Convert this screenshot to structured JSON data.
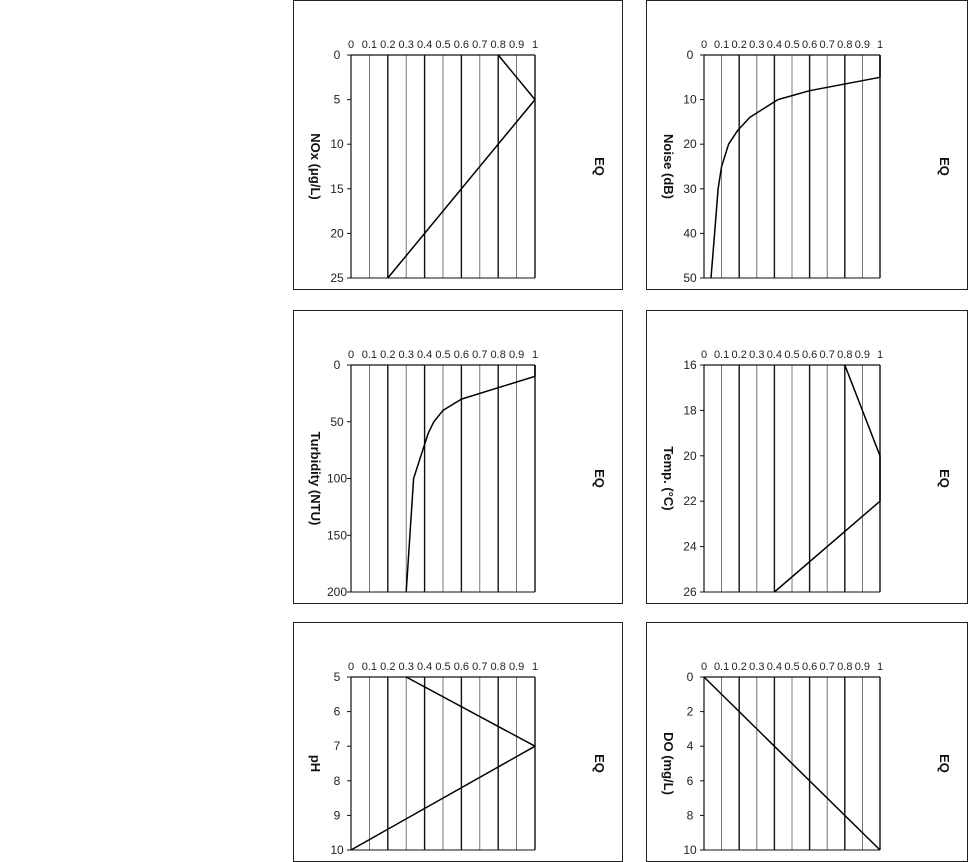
{
  "page": {
    "rotated": true,
    "rotation_degrees": 90
  },
  "chart_data": [
    {
      "panel_label": "noise",
      "type": "line",
      "ylabel": "EQ",
      "xlabel": "Noise (dB)",
      "ylim": [
        0,
        1
      ],
      "xlim": [
        0,
        50
      ],
      "y_ticks": [
        "0",
        "0.1",
        "0.2",
        "0.3",
        "0.4",
        "0.5",
        "0.6",
        "0.7",
        "0.8",
        "0.9",
        "1"
      ],
      "x_ticks": [
        "0",
        "10",
        "20",
        "30",
        "40",
        "50"
      ],
      "grid": true,
      "series": [
        {
          "x": [
            0,
            5,
            8,
            10,
            12,
            14,
            17,
            20,
            25,
            30,
            40,
            50
          ],
          "y": [
            1.0,
            1.0,
            0.6,
            0.42,
            0.34,
            0.26,
            0.19,
            0.14,
            0.1,
            0.08,
            0.06,
            0.04
          ]
        }
      ]
    },
    {
      "panel_label": "temperature",
      "type": "line",
      "ylabel": "EQ",
      "xlabel": "Temp. (°C)",
      "ylim": [
        0,
        1
      ],
      "xlim": [
        16,
        26
      ],
      "y_ticks": [
        "0",
        "0.1",
        "0.2",
        "0.3",
        "0.4",
        "0.5",
        "0.6",
        "0.7",
        "0.8",
        "0.9",
        "1"
      ],
      "x_ticks": [
        "16",
        "18",
        "20",
        "22",
        "24",
        "26"
      ],
      "grid": true,
      "series": [
        {
          "x": [
            16,
            20,
            22,
            26
          ],
          "y": [
            0.8,
            1.0,
            1.0,
            0.4
          ]
        }
      ]
    },
    {
      "panel_label": "dissolved-oxygen",
      "type": "line",
      "ylabel": "EQ",
      "xlabel": "DO (mg/L)",
      "ylim": [
        0,
        1
      ],
      "xlim": [
        0,
        10
      ],
      "y_ticks": [
        "0",
        "0.1",
        "0.2",
        "0.3",
        "0.4",
        "0.5",
        "0.6",
        "0.7",
        "0.8",
        "0.9",
        "1"
      ],
      "x_ticks": [
        "0",
        "2",
        "4",
        "6",
        "8",
        "10"
      ],
      "grid": true,
      "series": [
        {
          "x": [
            0,
            10
          ],
          "y": [
            0,
            1
          ]
        }
      ]
    },
    {
      "panel_label": "nox",
      "type": "line",
      "ylabel": "EQ",
      "xlabel": "NOx (μg/L)",
      "ylim": [
        0,
        1
      ],
      "xlim": [
        0,
        25
      ],
      "y_ticks": [
        "0",
        "0.1",
        "0.2",
        "0.3",
        "0.4",
        "0.5",
        "0.6",
        "0.7",
        "0.8",
        "0.9",
        "1"
      ],
      "x_ticks": [
        "0",
        "5",
        "10",
        "15",
        "20",
        "25"
      ],
      "grid": true,
      "series": [
        {
          "x": [
            0,
            5,
            25
          ],
          "y": [
            0.8,
            1.0,
            0.2
          ]
        }
      ]
    },
    {
      "panel_label": "turbidity",
      "type": "line",
      "ylabel": "EQ",
      "xlabel": "Turbidity (NTU)",
      "ylim": [
        0,
        1
      ],
      "xlim": [
        0,
        200
      ],
      "y_ticks": [
        "0",
        "0.1",
        "0.2",
        "0.3",
        "0.4",
        "0.5",
        "0.6",
        "0.7",
        "0.8",
        "0.9",
        "1"
      ],
      "x_ticks": [
        "0",
        "50",
        "100",
        "150",
        "200"
      ],
      "grid": true,
      "series": [
        {
          "x": [
            0,
            10,
            20,
            30,
            40,
            50,
            60,
            70,
            80,
            100,
            150,
            200
          ],
          "y": [
            1.0,
            1.0,
            0.8,
            0.6,
            0.5,
            0.45,
            0.42,
            0.4,
            0.38,
            0.34,
            0.32,
            0.3
          ]
        }
      ]
    },
    {
      "panel_label": "ph",
      "type": "line",
      "ylabel": "EQ",
      "xlabel": "pH",
      "ylim": [
        0,
        1
      ],
      "xlim": [
        5,
        10
      ],
      "y_ticks": [
        "0",
        "0.1",
        "0.2",
        "0.3",
        "0.4",
        "0.5",
        "0.6",
        "0.7",
        "0.8",
        "0.9",
        "1"
      ],
      "x_ticks": [
        "5",
        "6",
        "7",
        "8",
        "9",
        "10"
      ],
      "grid": true,
      "series": [
        {
          "x": [
            5,
            7,
            10
          ],
          "y": [
            0.3,
            1.0,
            0.0
          ]
        }
      ]
    }
  ]
}
